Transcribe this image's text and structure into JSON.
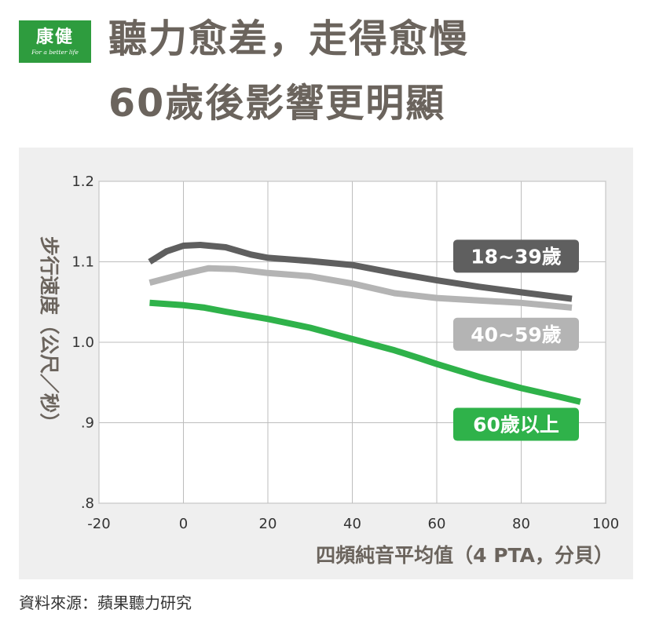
{
  "brand": {
    "logo_text": "康健",
    "tagline": "For a better life",
    "color": "#2e9c3e"
  },
  "title": {
    "line1": "聽力愈差，走得愈慢",
    "line2": "60歲後影響更明顯"
  },
  "chart_data": {
    "type": "line",
    "ylabel": "步行速度（公尺／秒）",
    "xlabel": "四頻純音平均值（4 PTA，分貝）",
    "xlim": [
      -20,
      100
    ],
    "ylim": [
      0.8,
      1.2
    ],
    "xticks": [
      "-20",
      "0",
      "20",
      "40",
      "60",
      "80",
      "100"
    ],
    "yticks": [
      ".8",
      ".9",
      "1.0",
      "1.1",
      "1.2"
    ],
    "grid": true,
    "series": [
      {
        "name": "18~39歲",
        "color": "#5f5f5f",
        "points": [
          [
            -8,
            1.1
          ],
          [
            -4,
            1.113
          ],
          [
            0,
            1.12
          ],
          [
            4,
            1.121
          ],
          [
            10,
            1.118
          ],
          [
            16,
            1.109
          ],
          [
            20,
            1.105
          ],
          [
            30,
            1.101
          ],
          [
            40,
            1.096
          ],
          [
            50,
            1.086
          ],
          [
            60,
            1.077
          ],
          [
            70,
            1.069
          ],
          [
            80,
            1.062
          ],
          [
            92,
            1.054
          ]
        ]
      },
      {
        "name": "40~59歲",
        "color": "#b4b4b4",
        "points": [
          [
            -8,
            1.074
          ],
          [
            0,
            1.085
          ],
          [
            6,
            1.092
          ],
          [
            12,
            1.091
          ],
          [
            20,
            1.086
          ],
          [
            30,
            1.082
          ],
          [
            40,
            1.073
          ],
          [
            50,
            1.061
          ],
          [
            60,
            1.055
          ],
          [
            70,
            1.052
          ],
          [
            80,
            1.049
          ],
          [
            92,
            1.043
          ]
        ]
      },
      {
        "name": "60歲以上",
        "color": "#2fb24a",
        "points": [
          [
            -8,
            1.049
          ],
          [
            0,
            1.046
          ],
          [
            5,
            1.043
          ],
          [
            10,
            1.038
          ],
          [
            20,
            1.029
          ],
          [
            30,
            1.018
          ],
          [
            40,
            1.004
          ],
          [
            50,
            0.99
          ],
          [
            56,
            0.98
          ],
          [
            60,
            0.973
          ],
          [
            70,
            0.957
          ],
          [
            80,
            0.943
          ],
          [
            90,
            0.931
          ],
          [
            94,
            0.926
          ]
        ]
      }
    ],
    "label_anchors": [
      1.107,
      1.01,
      0.898
    ]
  },
  "source": "資料來源：蘋果聽力研究"
}
